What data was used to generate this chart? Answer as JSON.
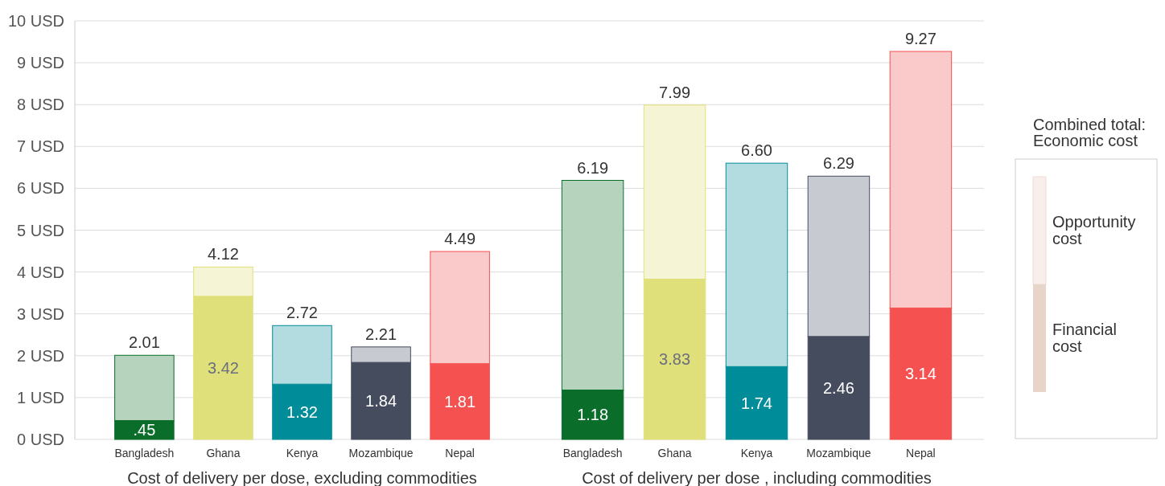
{
  "chart_data": [
    {
      "type": "bar",
      "stacked": true,
      "xlabel": "Cost of delivery per dose, excluding commodities",
      "categories": [
        "Bangladesh",
        "Ghana",
        "Kenya",
        "Mozambique",
        "Nepal"
      ],
      "series": [
        {
          "colors": [
            "#0a6e2a",
            "#e0e07a",
            "#008c99",
            "#454c5e",
            "#f55151"
          ],
          "values": [
            0.45,
            3.42,
            1.32,
            1.84,
            1.81
          ],
          "value_labels": [
            ".45",
            "3.42",
            "1.32",
            "1.84",
            "1.81"
          ]
        },
        {
          "colors": [
            "#b5d3bd",
            "#f5f4d5",
            "#b2dcdf",
            "#c8cad1",
            "#fac9c9"
          ],
          "values": [
            1.56,
            0.7,
            1.4,
            0.37,
            2.68
          ]
        }
      ],
      "totals": [
        "2.01",
        "4.12",
        "2.72",
        "2.21",
        "4.49"
      ],
      "ylim": [
        0,
        10
      ],
      "yticks": [
        {
          "value": 0,
          "label": "0 USD"
        },
        {
          "value": 1,
          "label": "1 USD"
        },
        {
          "value": 2,
          "label": "2 USD"
        },
        {
          "value": 3,
          "label": "3 USD"
        },
        {
          "value": 4,
          "label": "4 USD"
        },
        {
          "value": 5,
          "label": "5 USD"
        },
        {
          "value": 6,
          "label": "6 USD"
        },
        {
          "value": 7,
          "label": "7 USD"
        },
        {
          "value": 8,
          "label": "8 USD"
        },
        {
          "value": 9,
          "label": "9 USD"
        },
        {
          "value": 10,
          "label": "10 USD"
        }
      ],
      "grid": "y"
    },
    {
      "type": "bar",
      "stacked": true,
      "xlabel": "Cost of delivery per dose , including commodities",
      "categories": [
        "Bangladesh",
        "Ghana",
        "Kenya",
        "Mozambique",
        "Nepal"
      ],
      "series": [
        {
          "name": "Financial cost",
          "color": "#e8d5c9",
          "colors": [
            "#0a6e2a",
            "#e0e07a",
            "#008c99",
            "#454c5e",
            "#f55151"
          ],
          "values": [
            1.18,
            3.83,
            1.74,
            2.46,
            3.14
          ],
          "value_labels": [
            "1.18",
            "3.83",
            "1.74",
            "2.46",
            "3.14"
          ]
        },
        {
          "name": "Opportunity cost",
          "color": "#f8eeeb",
          "colors": [
            "#b5d3bd",
            "#f5f4d5",
            "#b2dcdf",
            "#c8cad1",
            "#fac9c9"
          ],
          "values": [
            5.01,
            4.16,
            4.86,
            3.83,
            6.13
          ]
        }
      ],
      "totals": [
        "6.19",
        "7.99",
        "6.60",
        "6.29",
        "9.27"
      ],
      "ylim": [
        0,
        10
      ],
      "yticks": [
        0,
        1,
        2,
        3,
        4,
        5,
        6,
        7,
        8,
        9,
        10
      ],
      "grid": "y",
      "tick_labels": "x",
      "legend": "right",
      "legend_title": "Combined total: Economic cost"
    }
  ]
}
